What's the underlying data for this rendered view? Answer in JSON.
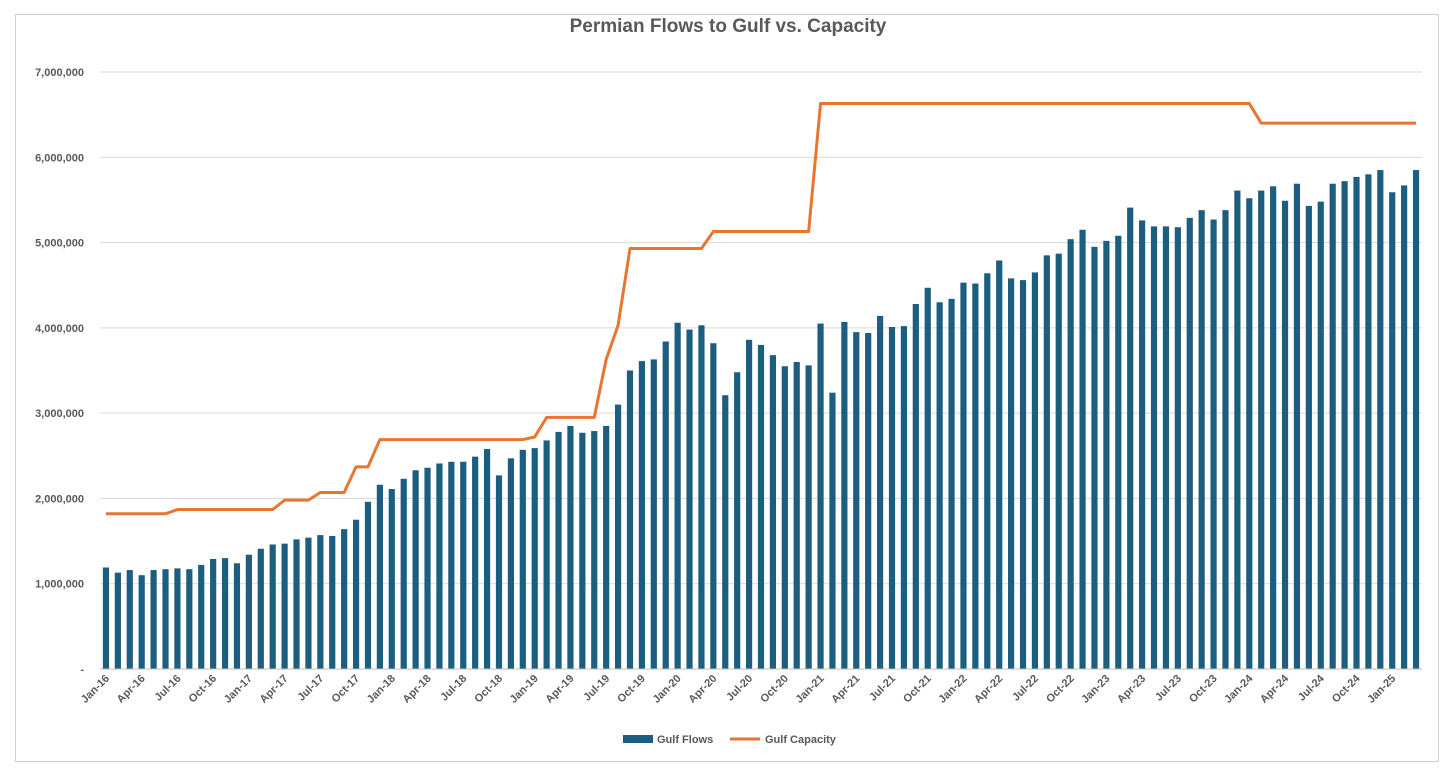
{
  "chart_data": {
    "type": "bar+line",
    "title": "Permian Flows to Gulf vs. Capacity",
    "xlabel": "",
    "ylabel": "",
    "ylim": [
      0,
      7000000
    ],
    "yticks": [
      {
        "value": 0,
        "label": "-"
      },
      {
        "value": 1000000,
        "label": "1,000,000"
      },
      {
        "value": 2000000,
        "label": "2,000,000"
      },
      {
        "value": 3000000,
        "label": "3,000,000"
      },
      {
        "value": 4000000,
        "label": "4,000,000"
      },
      {
        "value": 5000000,
        "label": "5,000,000"
      },
      {
        "value": 6000000,
        "label": "6,000,000"
      },
      {
        "value": 7000000,
        "label": "7,000,000"
      }
    ],
    "grid": true,
    "legend_position": "bottom",
    "colors": {
      "bars": "#1b5e7f",
      "line": "#e87532",
      "grid": "#d9d9d9"
    },
    "tick_labels": [
      "Jan-16",
      "Apr-16",
      "Jul-16",
      "Oct-16",
      "Jan-17",
      "Apr-17",
      "Jul-17",
      "Oct-17",
      "Jan-18",
      "Apr-18",
      "Jul-18",
      "Oct-18",
      "Jan-19",
      "Apr-19",
      "Jul-19",
      "Oct-19",
      "Jan-20",
      "Apr-20",
      "Jul-20",
      "Oct-20",
      "Jan-21",
      "Apr-21",
      "Jul-21",
      "Oct-21",
      "Jan-22",
      "Apr-22",
      "Jul-22",
      "Oct-22",
      "Jan-23",
      "Apr-23",
      "Jul-23",
      "Oct-23",
      "Jan-24",
      "Apr-24",
      "Jul-24",
      "Oct-24",
      "Jan-25"
    ],
    "series": [
      {
        "name": "Gulf Flows",
        "kind": "bar",
        "values": [
          1190000,
          1130000,
          1160000,
          1100000,
          1160000,
          1170000,
          1180000,
          1170000,
          1220000,
          1290000,
          1300000,
          1240000,
          1340000,
          1410000,
          1460000,
          1470000,
          1520000,
          1540000,
          1570000,
          1560000,
          1640000,
          1750000,
          1960000,
          2160000,
          2110000,
          2230000,
          2330000,
          2360000,
          2410000,
          2430000,
          2430000,
          2490000,
          2580000,
          2270000,
          2470000,
          2570000,
          2590000,
          2680000,
          2780000,
          2850000,
          2770000,
          2790000,
          2850000,
          3100000,
          3500000,
          3610000,
          3630000,
          3840000,
          4060000,
          3980000,
          4030000,
          3820000,
          3210000,
          3480000,
          3860000,
          3800000,
          3680000,
          3550000,
          3600000,
          3560000,
          4050000,
          3240000,
          4070000,
          3950000,
          3940000,
          4140000,
          4010000,
          4020000,
          4280000,
          4470000,
          4300000,
          4340000,
          4530000,
          4520000,
          4640000,
          4790000,
          4580000,
          4560000,
          4650000,
          4850000,
          4870000,
          5040000,
          5150000,
          4950000,
          5020000,
          5080000,
          5410000,
          5260000,
          5190000,
          5190000,
          5180000,
          5290000,
          5380000,
          5270000,
          5380000,
          5610000,
          5520000,
          5610000,
          5660000,
          5490000,
          5690000,
          5430000,
          5480000,
          5690000,
          5720000,
          5770000,
          5800000,
          5850000,
          5590000,
          5670000,
          5850000
        ]
      },
      {
        "name": "Gulf Capacity",
        "kind": "line",
        "values": [
          1820000,
          1820000,
          1820000,
          1820000,
          1820000,
          1820000,
          1870000,
          1870000,
          1870000,
          1870000,
          1870000,
          1870000,
          1870000,
          1870000,
          1870000,
          1980000,
          1980000,
          1980000,
          2070000,
          2070000,
          2070000,
          2370000,
          2370000,
          2690000,
          2690000,
          2690000,
          2690000,
          2690000,
          2690000,
          2690000,
          2690000,
          2690000,
          2690000,
          2690000,
          2690000,
          2690000,
          2720000,
          2950000,
          2950000,
          2950000,
          2950000,
          2950000,
          3630000,
          4030000,
          4930000,
          4930000,
          4930000,
          4930000,
          4930000,
          4930000,
          4930000,
          5130000,
          5130000,
          5130000,
          5130000,
          5130000,
          5130000,
          5130000,
          5130000,
          5130000,
          6630000,
          6630000,
          6630000,
          6630000,
          6630000,
          6630000,
          6630000,
          6630000,
          6630000,
          6630000,
          6630000,
          6630000,
          6630000,
          6630000,
          6630000,
          6630000,
          6630000,
          6630000,
          6630000,
          6630000,
          6630000,
          6630000,
          6630000,
          6630000,
          6630000,
          6630000,
          6630000,
          6630000,
          6630000,
          6630000,
          6630000,
          6630000,
          6630000,
          6630000,
          6630000,
          6630000,
          6630000,
          6400000,
          6400000,
          6400000,
          6400000,
          6400000,
          6400000,
          6400000,
          6400000,
          6400000,
          6400000,
          6400000,
          6400000,
          6400000,
          6400000
        ]
      }
    ]
  }
}
